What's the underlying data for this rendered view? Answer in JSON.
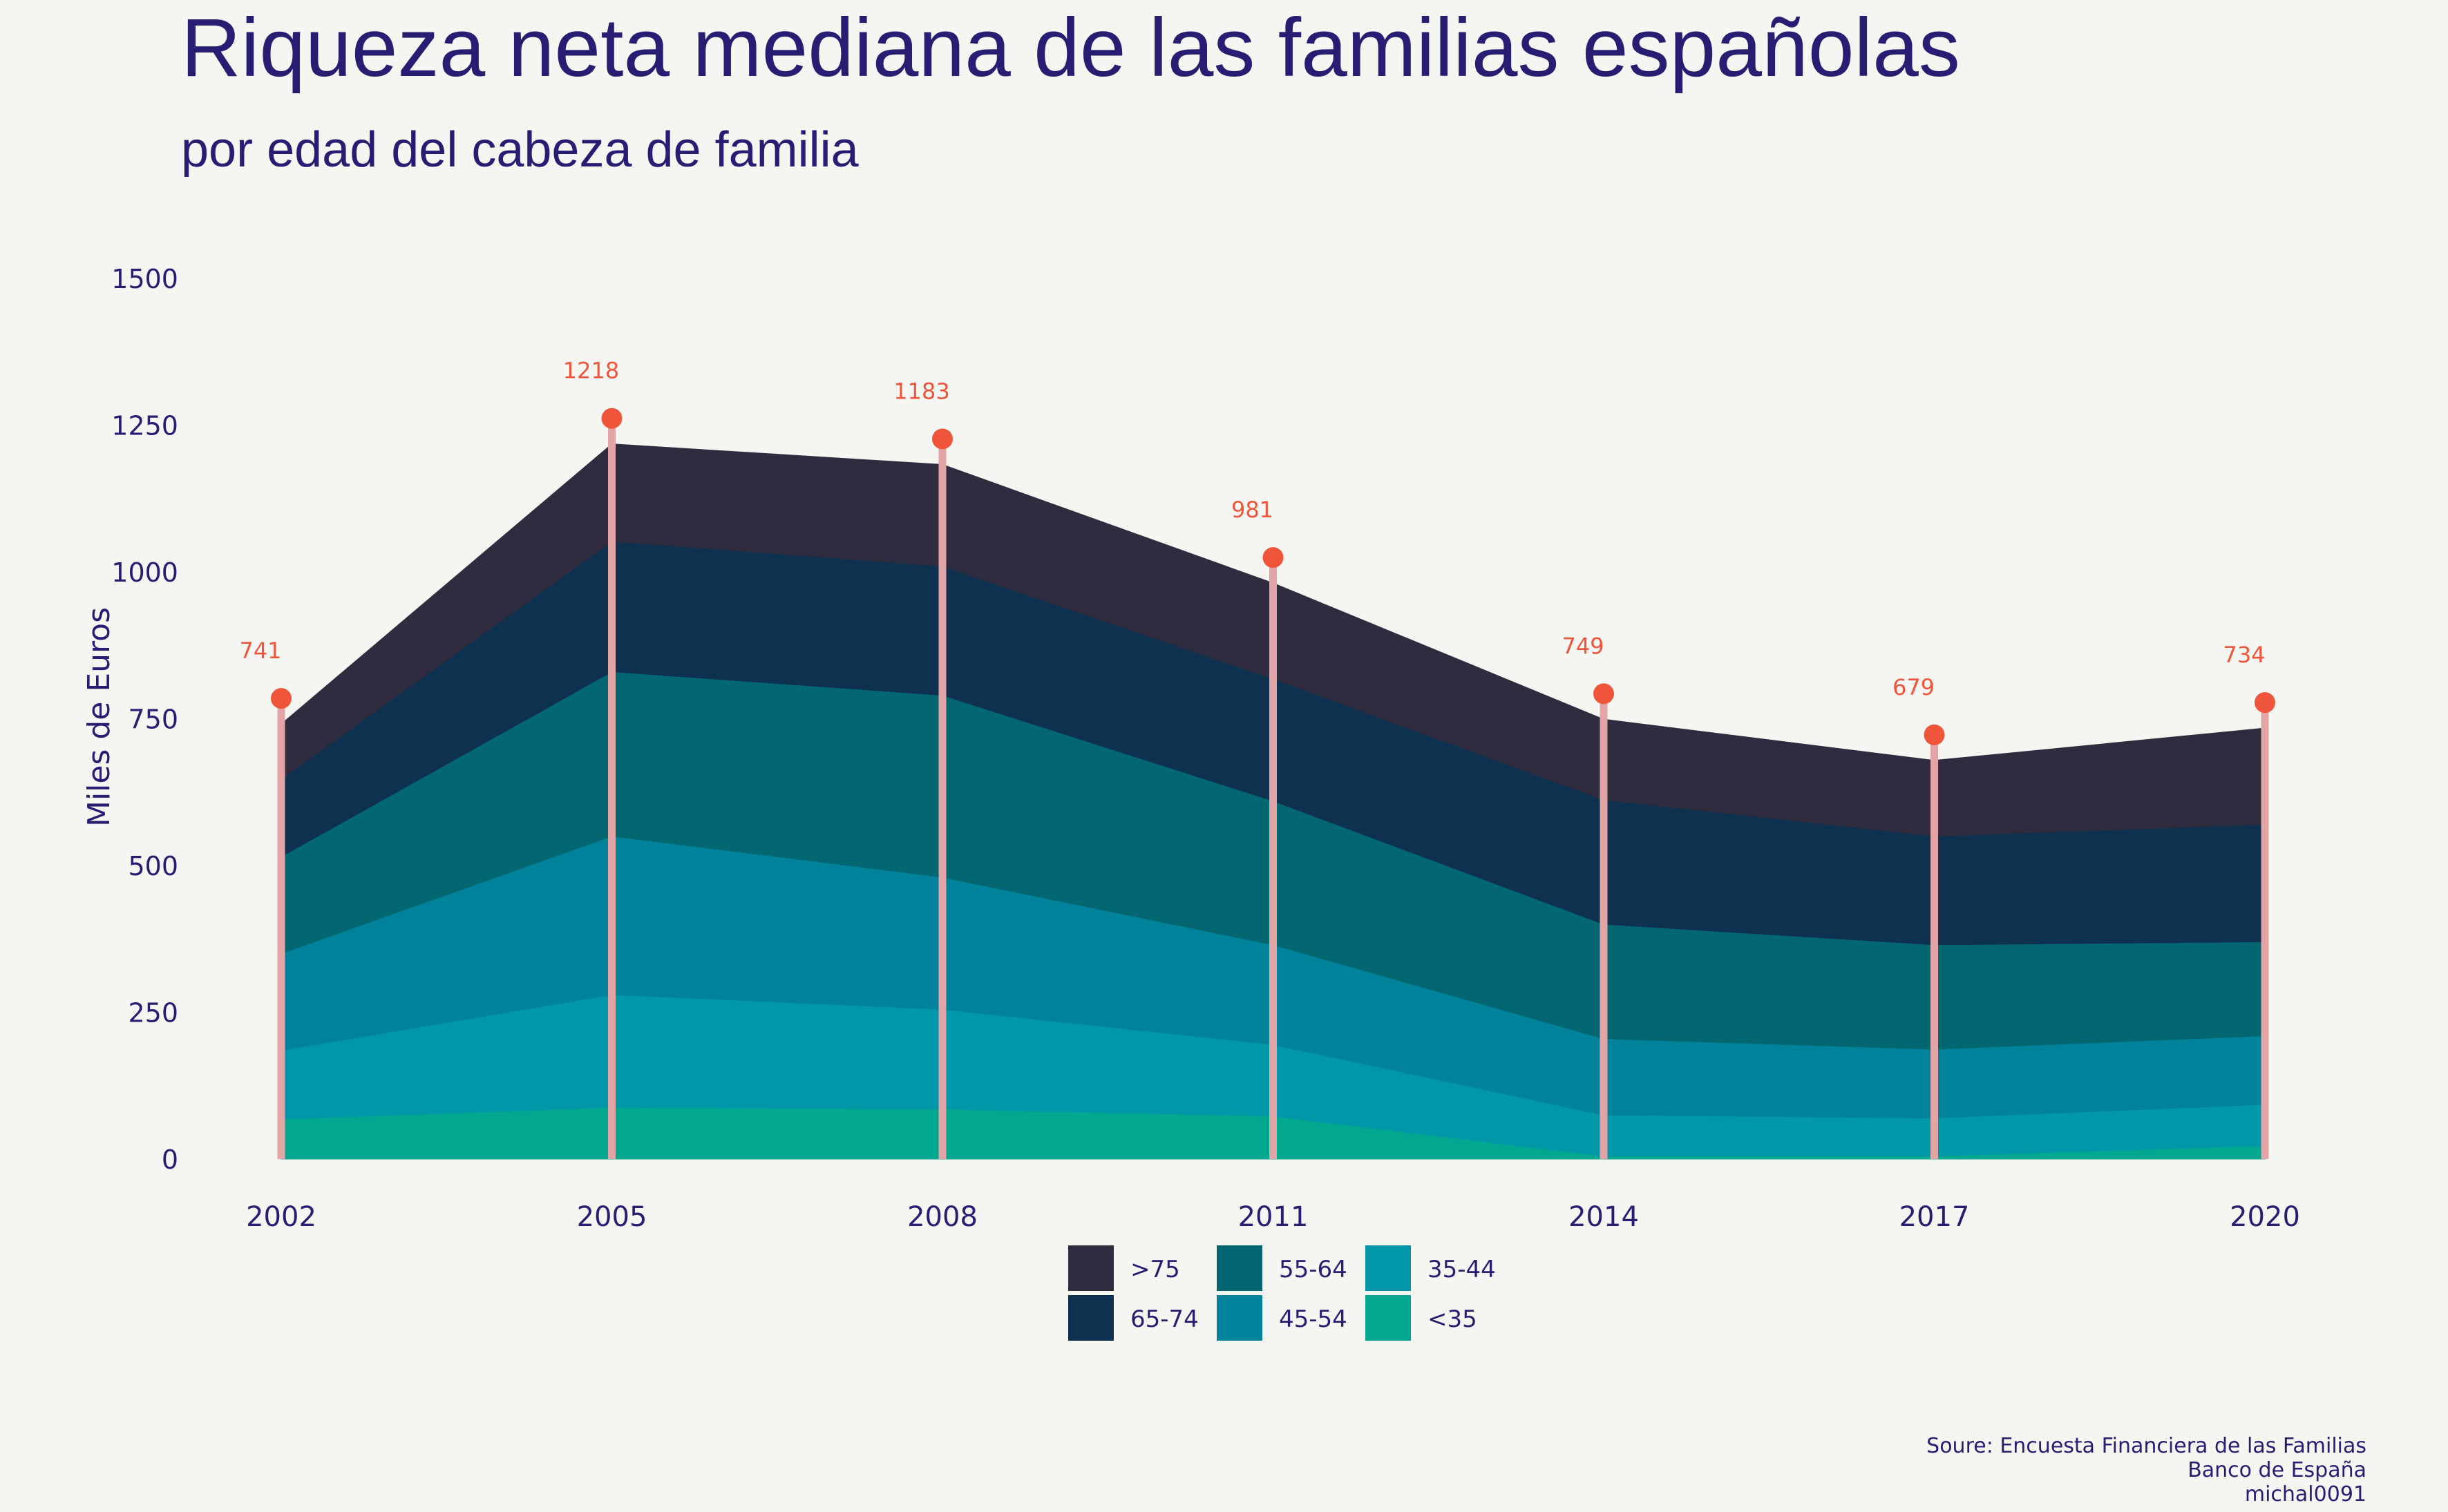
{
  "title": "Riqueza neta mediana de las familias españolas",
  "subtitle": "por edad del cabeza de familia",
  "caption": [
    "Soure: Encuesta Financiera de las Familias",
    "Banco de España",
    "michal0091"
  ],
  "chart_data": {
    "type": "area",
    "stacked": true,
    "x": [
      "2002",
      "2005",
      "2008",
      "2011",
      "2014",
      "2017",
      "2020"
    ],
    "ylabel": "Miles de Euros",
    "ylim": [
      0,
      1500
    ],
    "yticks": [
      0,
      250,
      500,
      750,
      1000,
      1250,
      1500
    ],
    "grid": false,
    "legend_position": "bottom",
    "series": [
      {
        "name": "<35",
        "color": "#01a88f",
        "values": [
          68,
          88,
          85,
          73,
          5,
          5,
          23
        ]
      },
      {
        "name": "35-44",
        "color": "#0098a9",
        "values": [
          117,
          192,
          170,
          122,
          70,
          65,
          70
        ]
      },
      {
        "name": "45-54",
        "color": "#00829a",
        "values": [
          165,
          270,
          225,
          170,
          130,
          117,
          117
        ]
      },
      {
        "name": "55-64",
        "color": "#036771",
        "values": [
          165,
          280,
          310,
          245,
          195,
          178,
          160
        ]
      },
      {
        "name": "65-74",
        "color": "#0e3150",
        "values": [
          132,
          222,
          220,
          208,
          212,
          185,
          200
        ]
      },
      {
        "name": ">75",
        "color": "#2f2c3f",
        "values": [
          94,
          166,
          173,
          163,
          137,
          129,
          164
        ]
      }
    ],
    "legend_order": [
      ">75",
      "65-74",
      "55-64",
      "45-54",
      "35-44",
      "<35"
    ],
    "totals": [
      741,
      1218,
      1183,
      981,
      749,
      679,
      734
    ],
    "total_labels": [
      "741",
      "1218",
      "1183",
      "981",
      "749",
      "679",
      "734"
    ],
    "total_color": "#ee553b",
    "stem_color": "#e3a4a6"
  }
}
